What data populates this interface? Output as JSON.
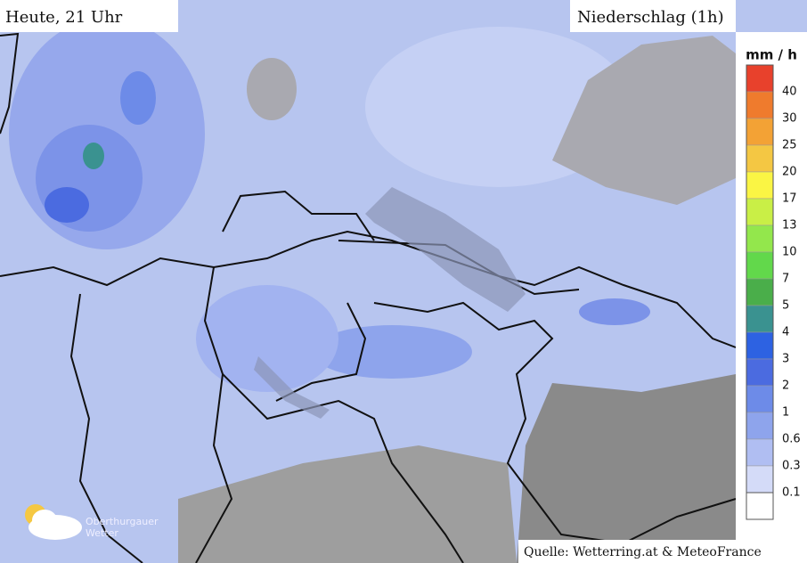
{
  "header": {
    "time": "Heute, 21 Uhr",
    "product": "Niederschlag (1h)"
  },
  "legend": {
    "unit": "mm / h",
    "items": [
      {
        "label": 40,
        "color": "#e8412c"
      },
      {
        "label": 30,
        "color": "#ef7b2d"
      },
      {
        "label": 25,
        "color": "#f3a235"
      },
      {
        "label": 20,
        "color": "#f4c743"
      },
      {
        "label": 17,
        "color": "#faf544"
      },
      {
        "label": 13,
        "color": "#c9ef46"
      },
      {
        "label": 10,
        "color": "#93e74c"
      },
      {
        "label": 7,
        "color": "#62d84b"
      },
      {
        "label": 5,
        "color": "#4aae4a"
      },
      {
        "label": 4,
        "color": "#3a9290"
      },
      {
        "label": 3,
        "color": "#2d62e2"
      },
      {
        "label": 2,
        "color": "#4b6be0"
      },
      {
        "label": 1,
        "color": "#6d8be8"
      },
      {
        "label": 0.6,
        "color": "#8ea4ec"
      },
      {
        "label": 0.3,
        "color": "#b0bef2"
      },
      {
        "label": 0.1,
        "color": "#d4dbf8"
      }
    ]
  },
  "logo": {
    "line1": "Oberthurgauer",
    "line2": "Wetter"
  },
  "source": "Quelle: Wetterring.at & MeteoFrance"
}
